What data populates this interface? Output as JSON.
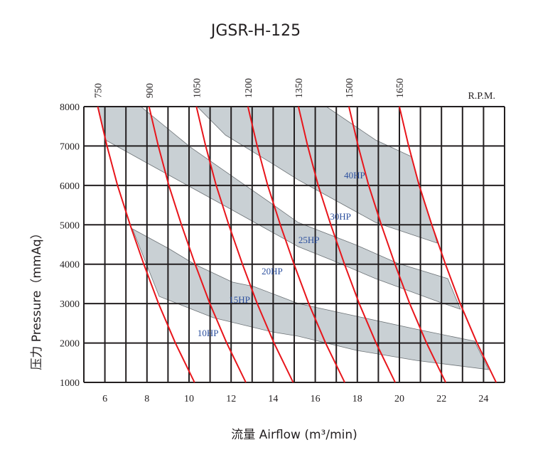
{
  "chart_data": {
    "type": "line",
    "title": "JGSR-H-125",
    "xlabel": "流量 Airflow (m³/min)",
    "ylabel": "压力 Pressure（mmAq）",
    "rpm_axis_label": "R.P.M.",
    "xlim": [
      5,
      25
    ],
    "ylim": [
      1000,
      8000
    ],
    "xticks": [
      6,
      8,
      10,
      12,
      14,
      16,
      18,
      20,
      22,
      24
    ],
    "yticks": [
      1000,
      2000,
      3000,
      4000,
      5000,
      6000,
      7000,
      8000
    ],
    "grid": {
      "x_step": 1,
      "y_step": 1000,
      "on": true
    },
    "colors": {
      "rpm_curve": "#e8151b",
      "band_fill": "#c9d0d4",
      "band_edge": "#6d7377",
      "hp_label": "#2b4f9e",
      "grid": "#231f20"
    },
    "pressure_points": [
      8000,
      7000,
      6000,
      5000,
      4000,
      3000,
      2000,
      1000
    ],
    "series": [
      {
        "name": "750",
        "x": [
          5.66,
          6.1,
          6.6,
          7.2,
          7.85,
          8.55,
          9.35,
          10.26
        ]
      },
      {
        "name": "900",
        "x": [
          8.1,
          8.54,
          9.04,
          9.64,
          10.29,
          10.99,
          11.79,
          12.7
        ]
      },
      {
        "name": "1050",
        "x": [
          10.35,
          10.79,
          11.29,
          11.89,
          12.54,
          13.24,
          14.04,
          14.95
        ]
      },
      {
        "name": "1200",
        "x": [
          12.8,
          13.24,
          13.74,
          14.34,
          14.99,
          15.69,
          16.49,
          17.4
        ]
      },
      {
        "name": "1350",
        "x": [
          15.2,
          15.64,
          16.14,
          16.74,
          17.39,
          18.09,
          18.89,
          19.8
        ]
      },
      {
        "name": "1500",
        "x": [
          17.6,
          18.04,
          18.54,
          19.14,
          19.79,
          20.49,
          21.29,
          22.2
        ]
      },
      {
        "name": "1650",
        "x": [
          20.0,
          20.44,
          20.94,
          21.54,
          22.19,
          22.89,
          23.69,
          24.6
        ]
      }
    ],
    "bands": [
      {
        "points": [
          [
            7.31,
            4897
          ],
          [
            9.05,
            4392
          ],
          [
            10.26,
            4000
          ],
          [
            12.07,
            3544
          ],
          [
            13.07,
            3435
          ],
          [
            15.19,
            3003
          ],
          [
            17.97,
            2678
          ],
          [
            20.78,
            2353
          ],
          [
            23.57,
            2046
          ],
          [
            24.24,
            1325
          ],
          [
            20.78,
            1559
          ],
          [
            17.97,
            1812
          ],
          [
            15.19,
            2173
          ],
          [
            13.95,
            2281
          ],
          [
            11.16,
            2642
          ],
          [
            8.58,
            3183
          ]
        ]
      },
      {
        "points": [
          [
            5.66,
            8000
          ],
          [
            7.71,
            8000
          ],
          [
            10.06,
            6972
          ],
          [
            13.95,
            5528
          ],
          [
            15.19,
            5059
          ],
          [
            17.97,
            4482
          ],
          [
            19.88,
            4031
          ],
          [
            22.3,
            3634
          ],
          [
            22.9,
            2858
          ],
          [
            21.9,
            3039
          ],
          [
            18.87,
            3634
          ],
          [
            16.96,
            4067
          ],
          [
            15.19,
            4446
          ],
          [
            11.6,
            5510
          ],
          [
            10.06,
            5961
          ],
          [
            8.04,
            6557
          ],
          [
            6.03,
            7152
          ]
        ]
      },
      {
        "points": [
          [
            10.39,
            8000
          ],
          [
            16.53,
            8000
          ],
          [
            18.87,
            7152
          ],
          [
            20.55,
            6737
          ],
          [
            21.8,
            4536
          ],
          [
            18.87,
            5059
          ],
          [
            15.19,
            6141
          ],
          [
            13.95,
            6557
          ],
          [
            11.73,
            7278
          ]
        ]
      }
    ],
    "annotations": [
      {
        "text": "10HP",
        "x": 10.9,
        "y": 2263
      },
      {
        "text": "15HP",
        "x": 12.4,
        "y": 3110
      },
      {
        "text": "20HP",
        "x": 13.95,
        "y": 3832
      },
      {
        "text": "25HP",
        "x": 15.7,
        "y": 4626
      },
      {
        "text": "30HP",
        "x": 17.2,
        "y": 5222
      },
      {
        "text": "40HP",
        "x": 17.87,
        "y": 6268
      }
    ]
  }
}
